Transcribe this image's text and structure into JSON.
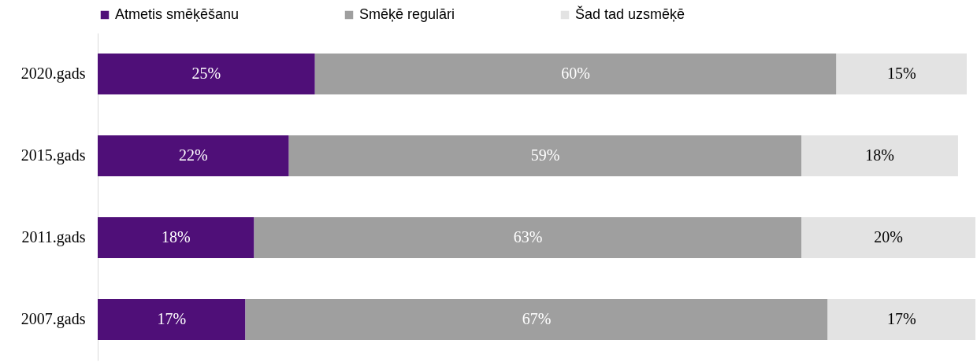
{
  "chart_data": {
    "type": "bar",
    "orientation": "horizontal",
    "stacked": true,
    "categories": [
      "2020.gads",
      "2015.gads",
      "2011.gads",
      "2007.gads"
    ],
    "series": [
      {
        "name": "Atmetis smēķēšanu",
        "color": "#4f0f78",
        "values": [
          25,
          22,
          18,
          17
        ],
        "value_labels": [
          "25%",
          "22%",
          "18%",
          "17%"
        ]
      },
      {
        "name": "Smēķē regulāri",
        "color": "#9f9f9f",
        "values": [
          60,
          59,
          63,
          67
        ],
        "value_labels": [
          "60%",
          "59%",
          "63%",
          "67%"
        ]
      },
      {
        "name": "Šad tad uzsmēķē",
        "color": "#e3e3e3",
        "values": [
          15,
          18,
          20,
          17
        ],
        "value_labels": [
          "15%",
          "18%",
          "20%",
          "17%"
        ]
      }
    ],
    "tick_labels": "y",
    "legend": "top"
  }
}
